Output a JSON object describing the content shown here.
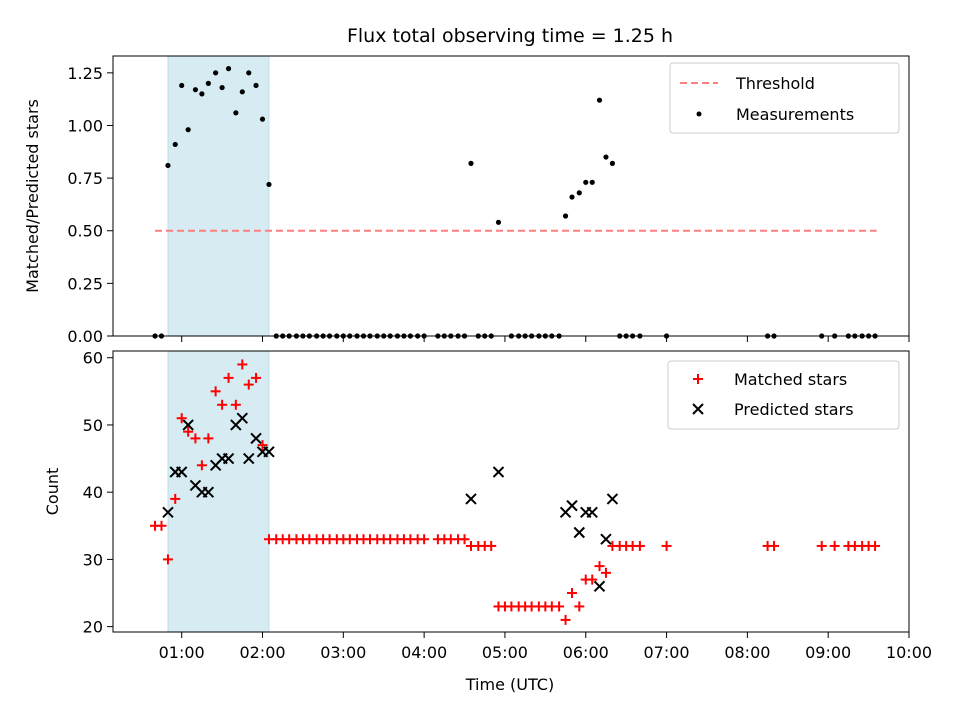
{
  "chart_data": {
    "type": "scatter",
    "title": "Flux total observing time = 1.25 h",
    "xlabel": "Time (UTC)",
    "x_unit": "hours UTC",
    "xlim": [
      0.15,
      10.0
    ],
    "x_ticks": [
      1,
      2,
      3,
      4,
      5,
      6,
      7,
      8,
      9,
      10
    ],
    "x_tick_labels": [
      "01:00",
      "02:00",
      "03:00",
      "04:00",
      "05:00",
      "06:00",
      "07:00",
      "08:00",
      "09:00",
      "10:00"
    ],
    "highlight_span": [
      0.83,
      2.08
    ],
    "highlight_color": "#add8e6",
    "panels": [
      {
        "ylabel": "Matched/Predicted stars",
        "ylim": [
          0.0,
          1.33
        ],
        "y_ticks": [
          0.0,
          0.25,
          0.5,
          0.75,
          1.0,
          1.25
        ],
        "y_tick_labels": [
          "0.00",
          "0.25",
          "0.50",
          "0.75",
          "1.00",
          "1.25"
        ],
        "legend_position": "top-right",
        "threshold": {
          "name": "Threshold",
          "value": 0.5,
          "x_range": [
            0.67,
            9.6
          ],
          "color": "#ff7f7f"
        },
        "series": [
          {
            "name": "Measurements",
            "marker": "dot",
            "color": "#000000",
            "x": [
              0.67,
              0.75,
              0.83,
              0.92,
              1.0,
              1.08,
              1.17,
              1.25,
              1.33,
              1.42,
              1.5,
              1.58,
              1.67,
              1.75,
              1.83,
              1.92,
              2.0,
              2.08,
              2.17,
              2.25,
              2.33,
              2.42,
              2.5,
              2.58,
              2.67,
              2.75,
              2.83,
              2.92,
              3.0,
              3.08,
              3.17,
              3.25,
              3.33,
              3.42,
              3.5,
              3.58,
              3.67,
              3.75,
              3.83,
              3.92,
              4.0,
              4.17,
              4.25,
              4.33,
              4.42,
              4.5,
              4.58,
              4.67,
              4.75,
              4.83,
              4.92,
              5.08,
              5.17,
              5.25,
              5.33,
              5.42,
              5.5,
              5.58,
              5.67,
              5.75,
              5.83,
              5.92,
              6.0,
              6.08,
              6.17,
              6.25,
              6.33,
              6.42,
              6.5,
              6.58,
              6.67,
              7.0,
              8.25,
              8.33,
              8.92,
              9.08,
              9.25,
              9.33,
              9.42,
              9.5,
              9.58
            ],
            "y": [
              0.0,
              0.0,
              0.81,
              0.91,
              1.19,
              0.98,
              1.17,
              1.15,
              1.2,
              1.25,
              1.18,
              1.27,
              1.06,
              1.16,
              1.25,
              1.19,
              1.03,
              0.72,
              0.0,
              0.0,
              0.0,
              0.0,
              0.0,
              0.0,
              0.0,
              0.0,
              0.0,
              0.0,
              0.0,
              0.0,
              0.0,
              0.0,
              0.0,
              0.0,
              0.0,
              0.0,
              0.0,
              0.0,
              0.0,
              0.0,
              0.0,
              0.0,
              0.0,
              0.0,
              0.0,
              0.0,
              0.82,
              0.0,
              0.0,
              0.0,
              0.54,
              0.0,
              0.0,
              0.0,
              0.0,
              0.0,
              0.0,
              0.0,
              0.0,
              0.57,
              0.66,
              0.68,
              0.73,
              0.73,
              1.12,
              0.85,
              0.82,
              0.0,
              0.0,
              0.0,
              0.0,
              0.0,
              0.0,
              0.0,
              0.0,
              0.0,
              0.0,
              0.0,
              0.0,
              0.0,
              0.0
            ]
          }
        ]
      },
      {
        "ylabel": "Count",
        "ylim": [
          19.2,
          61.0
        ],
        "y_ticks": [
          20,
          30,
          40,
          50,
          60
        ],
        "y_tick_labels": [
          "20",
          "30",
          "40",
          "50",
          "60"
        ],
        "legend_position": "top-right",
        "series": [
          {
            "name": "Matched stars",
            "marker": "plus",
            "color": "#ff0000",
            "x": [
              0.67,
              0.75,
              0.83,
              0.92,
              1.0,
              1.08,
              1.17,
              1.25,
              1.33,
              1.42,
              1.5,
              1.58,
              1.67,
              1.75,
              1.83,
              1.92,
              2.0,
              2.08,
              2.17,
              2.25,
              2.33,
              2.42,
              2.5,
              2.58,
              2.67,
              2.75,
              2.83,
              2.92,
              3.0,
              3.08,
              3.17,
              3.25,
              3.33,
              3.42,
              3.5,
              3.58,
              3.67,
              3.75,
              3.83,
              3.92,
              4.0,
              4.17,
              4.25,
              4.33,
              4.42,
              4.5,
              4.58,
              4.67,
              4.75,
              4.83,
              4.92,
              5.0,
              5.08,
              5.17,
              5.25,
              5.33,
              5.42,
              5.5,
              5.58,
              5.67,
              5.75,
              5.83,
              5.92,
              6.0,
              6.08,
              6.17,
              6.25,
              6.33,
              6.42,
              6.5,
              6.58,
              6.67,
              7.0,
              8.25,
              8.33,
              8.92,
              9.08,
              9.25,
              9.33,
              9.42,
              9.5,
              9.58
            ],
            "y": [
              35,
              35,
              30,
              39,
              51,
              49,
              48,
              44,
              48,
              55,
              53,
              57,
              53,
              59,
              56,
              57,
              47,
              33,
              33,
              33,
              33,
              33,
              33,
              33,
              33,
              33,
              33,
              33,
              33,
              33,
              33,
              33,
              33,
              33,
              33,
              33,
              33,
              33,
              33,
              33,
              33,
              33,
              33,
              33,
              33,
              33,
              32,
              32,
              32,
              32,
              23,
              23,
              23,
              23,
              23,
              23,
              23,
              23,
              23,
              23,
              21,
              25,
              23,
              27,
              27,
              29,
              28,
              32,
              32,
              32,
              32,
              32,
              32,
              32,
              32,
              32,
              32,
              32,
              32,
              32,
              32,
              32
            ]
          },
          {
            "name": "Predicted stars",
            "marker": "x",
            "color": "#000000",
            "x": [
              0.83,
              0.92,
              1.0,
              1.08,
              1.17,
              1.25,
              1.33,
              1.42,
              1.5,
              1.58,
              1.67,
              1.75,
              1.83,
              1.92,
              2.0,
              2.08,
              4.58,
              4.92,
              5.75,
              5.83,
              5.92,
              6.0,
              6.08,
              6.17,
              6.25,
              6.33
            ],
            "y": [
              37,
              43,
              43,
              50,
              41,
              40,
              40,
              44,
              45,
              45,
              50,
              51,
              45,
              48,
              46,
              46,
              39,
              43,
              37,
              38,
              34,
              37,
              37,
              26,
              33,
              39
            ]
          }
        ]
      }
    ]
  }
}
